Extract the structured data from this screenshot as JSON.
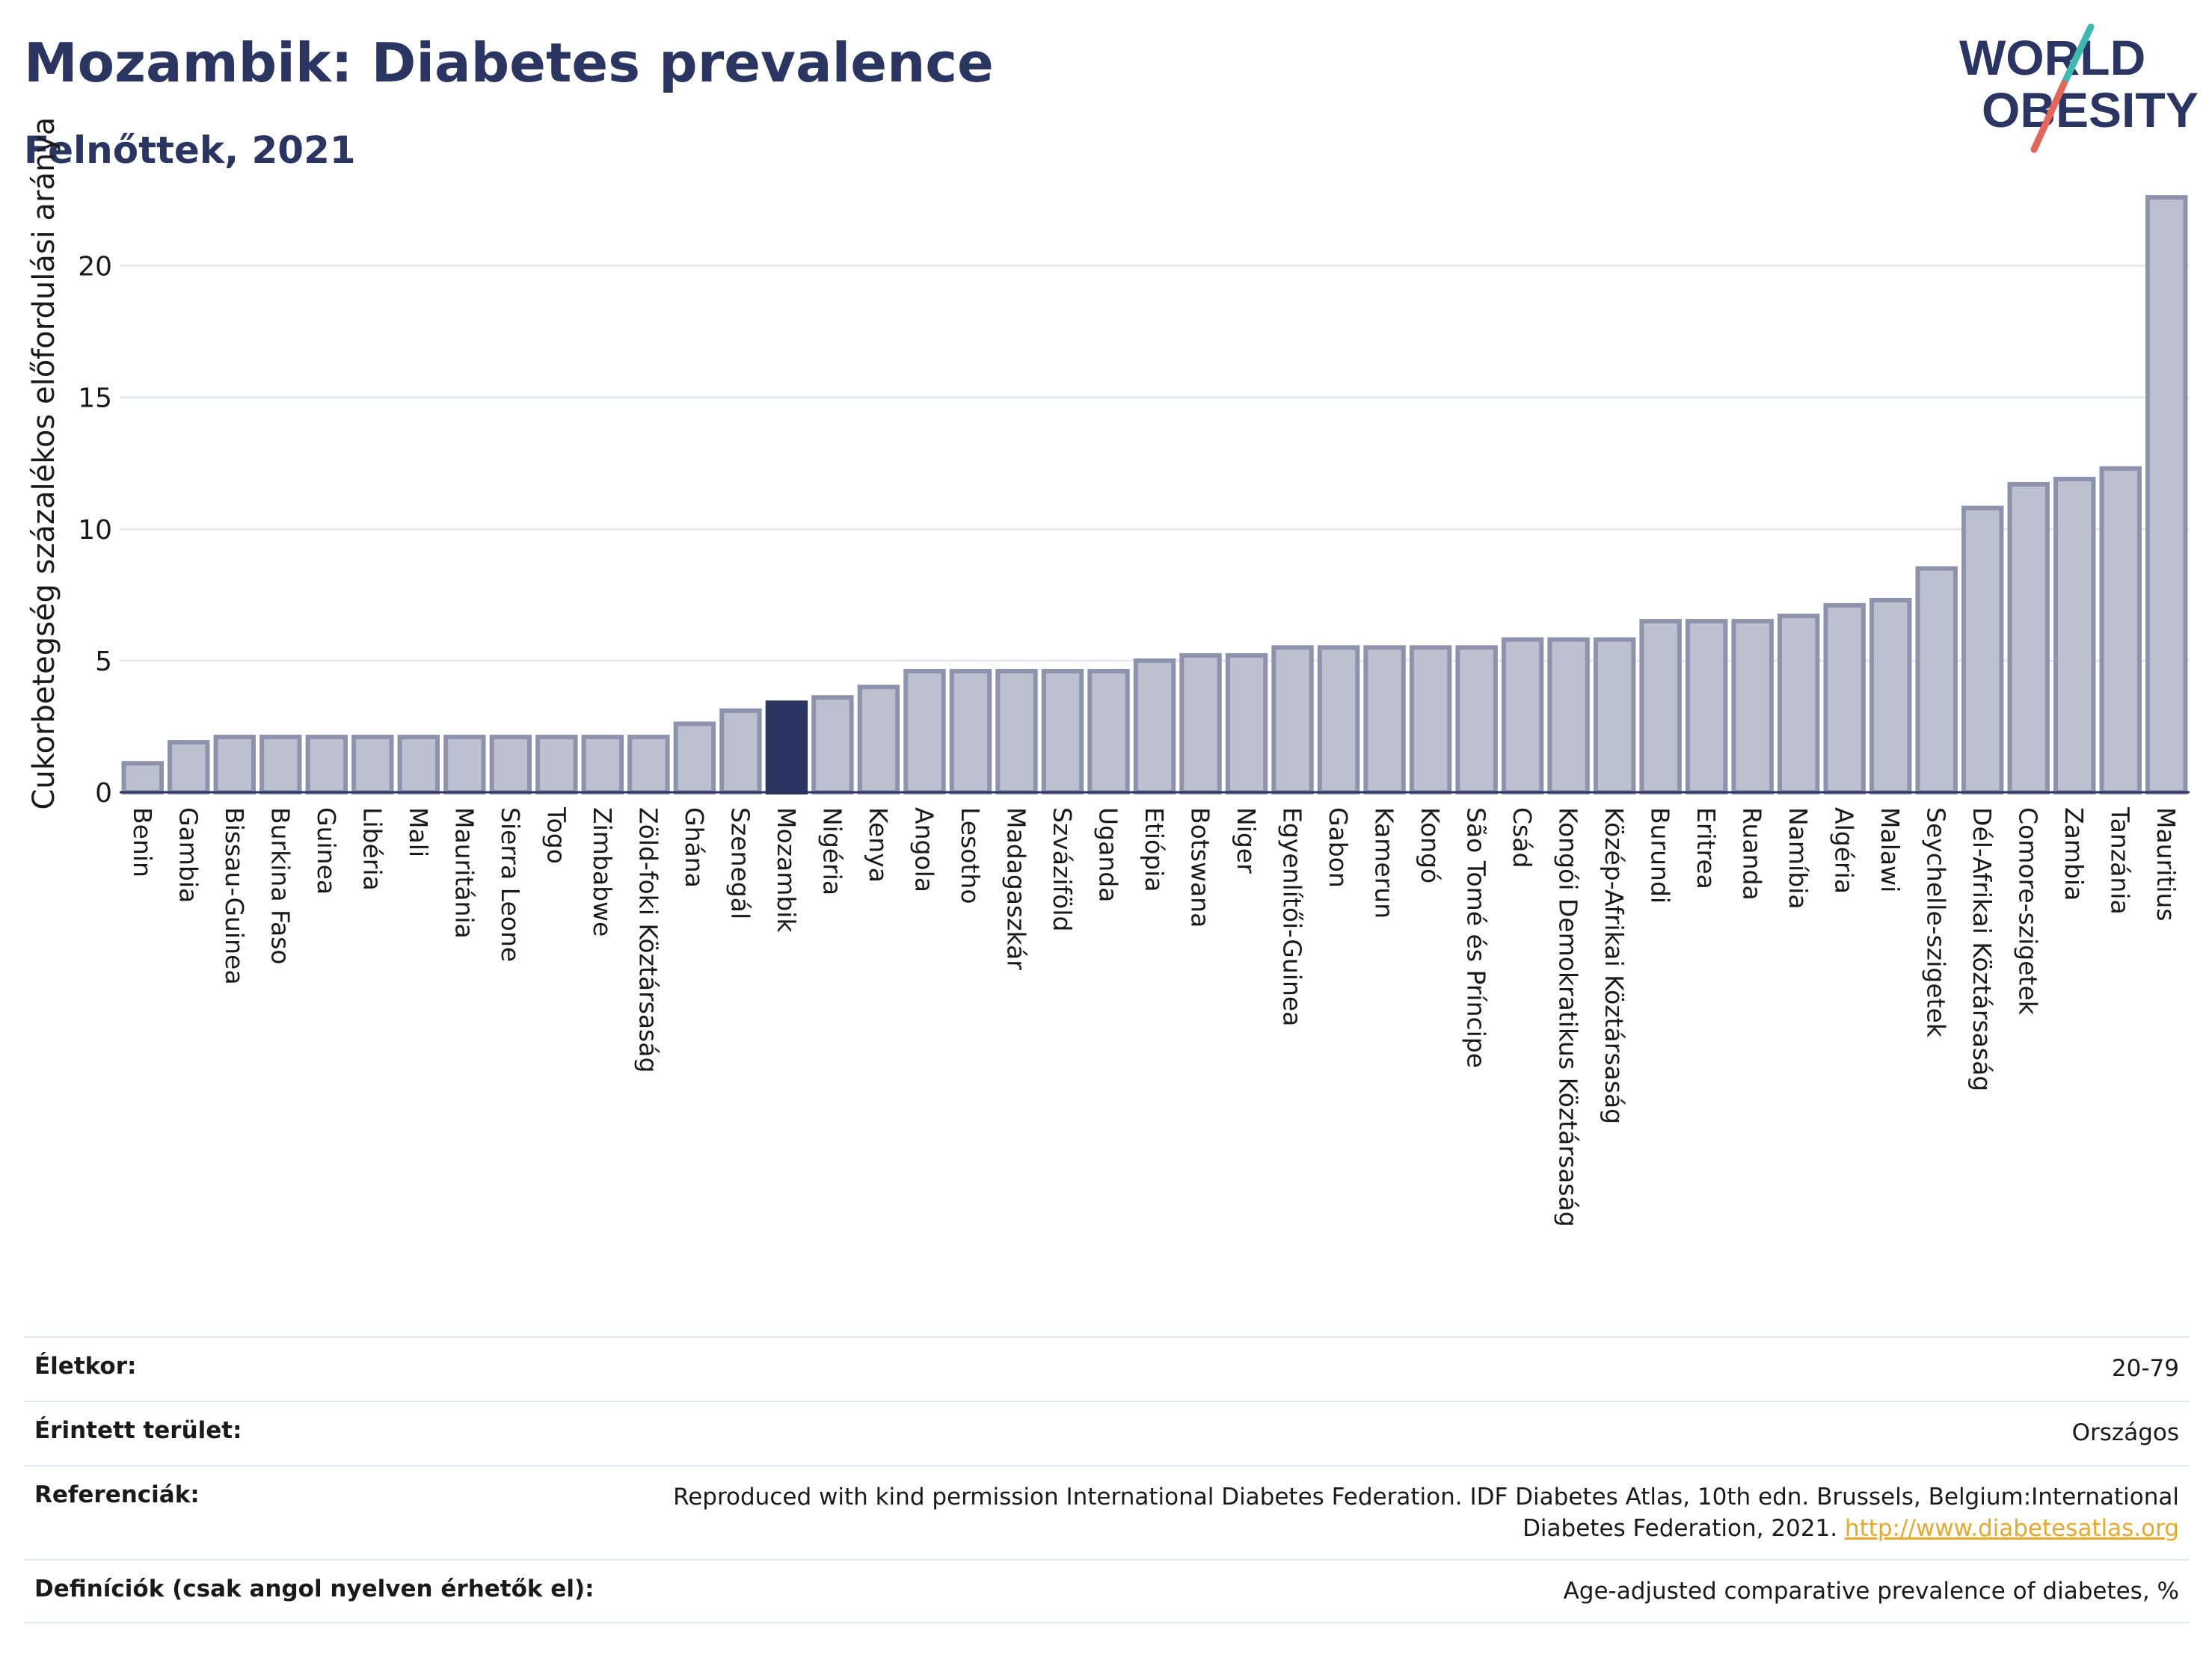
{
  "header": {
    "title": "Mozambik: Diabetes prevalence",
    "subtitle": "Felnőttek, 2021"
  },
  "logo": {
    "line1": "WORLD",
    "line2": "OBESITY"
  },
  "colors": {
    "title": "#2b3561",
    "bar": "#bcc0cf",
    "bar_border": "#8e93ad",
    "highlight": "#2b3561",
    "grid": "#e6e8ec",
    "logo_slash_teal": "#3fb8b0",
    "logo_slash_red": "#e5655a",
    "link": "#e8a92a"
  },
  "chart_data": {
    "type": "bar",
    "title": "Mozambik: Diabetes prevalence",
    "subtitle": "Felnőttek, 2021",
    "ylabel": "Cukorbetegség százalékos előfordulási aránya",
    "xlabel": "",
    "ylim": [
      0,
      23
    ],
    "yticks": [
      0,
      5,
      10,
      15,
      20
    ],
    "grid": true,
    "highlight": "Mozambik",
    "categories": [
      "Benin",
      "Gambia",
      "Bissau-Guinea",
      "Burkina Faso",
      "Guinea",
      "Libéria",
      "Mali",
      "Mauritánia",
      "Sierra Leone",
      "Togo",
      "Zimbabwe",
      "Zöld-foki Köztársaság",
      "Ghána",
      "Szenegál",
      "Mozambik",
      "Nigéria",
      "Kenya",
      "Angola",
      "Lesotho",
      "Madagaszkár",
      "Szváziföld",
      "Uganda",
      "Etiópia",
      "Botswana",
      "Niger",
      "Egyenlítői-Guinea",
      "Gabon",
      "Kamerun",
      "Kongó",
      "São Tomé és Príncipe",
      "Csád",
      "Kongói Demokratikus Köztársaság",
      "Közép-Afrikai Köztársaság",
      "Burundi",
      "Eritrea",
      "Ruanda",
      "Namíbia",
      "Algéria",
      "Malawi",
      "Seychelle-szigetek",
      "Dél-Afrikai Köztársaság",
      "Comore-szigetek",
      "Zambia",
      "Tanzánia",
      "Mauritius"
    ],
    "values": [
      1.1,
      1.9,
      2.1,
      2.1,
      2.1,
      2.1,
      2.1,
      2.1,
      2.1,
      2.1,
      2.1,
      2.1,
      2.6,
      3.1,
      3.4,
      3.6,
      4.0,
      4.6,
      4.6,
      4.6,
      4.6,
      4.6,
      5.0,
      5.2,
      5.2,
      5.5,
      5.5,
      5.5,
      5.5,
      5.5,
      5.8,
      5.8,
      5.8,
      6.5,
      6.5,
      6.5,
      6.7,
      7.1,
      7.3,
      8.5,
      10.8,
      11.7,
      11.9,
      12.3,
      22.6
    ]
  },
  "info": {
    "rows": [
      {
        "label": "Életkor:",
        "value": "20-79"
      },
      {
        "label": "Érintett terület:",
        "value": "Országos"
      },
      {
        "label": "Referenciák:",
        "value": "Reproduced with kind permission International Diabetes Federation.  IDF Diabetes Atlas, 10th edn. Brussels, Belgium:International Diabetes Federation, 2021.",
        "link": "http://www.diabetesatlas.org"
      },
      {
        "label": "Definíciók (csak angol nyelven érhetők el):",
        "value": "Age-adjusted comparative prevalence of diabetes, %"
      }
    ]
  }
}
